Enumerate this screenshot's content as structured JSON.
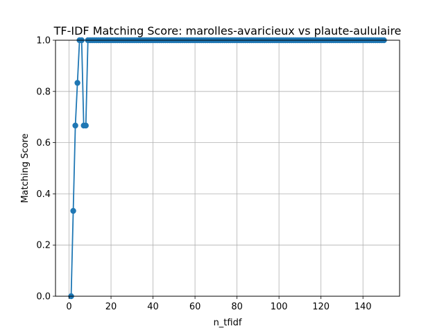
{
  "chart_data": {
    "type": "line",
    "title": "TF-IDF Matching Score: marolles-avaricieux vs plaute-aululaire",
    "xlabel": "n_tfidf",
    "ylabel": "Matching Score",
    "xlim": [
      -6.45,
      157.45
    ],
    "ylim": [
      0,
      1
    ],
    "xticks": [
      0,
      20,
      40,
      60,
      80,
      100,
      120,
      140
    ],
    "yticks": [
      0.0,
      0.2,
      0.4,
      0.6,
      0.8,
      1.0
    ],
    "xtick_labels": [
      "0",
      "20",
      "40",
      "60",
      "80",
      "100",
      "120",
      "140"
    ],
    "ytick_labels": [
      "0.0",
      "0.2",
      "0.4",
      "0.6",
      "0.8",
      "1.0"
    ],
    "grid": true,
    "series": [
      {
        "color": "#1f77b4",
        "marker": "circle",
        "x_start": 1,
        "x_end": 150,
        "initial_values": [
          0.0,
          0.3333,
          0.6667,
          0.8333,
          1.0,
          1.0,
          0.6667,
          0.6667
        ],
        "remaining_value": 1.0
      }
    ]
  }
}
